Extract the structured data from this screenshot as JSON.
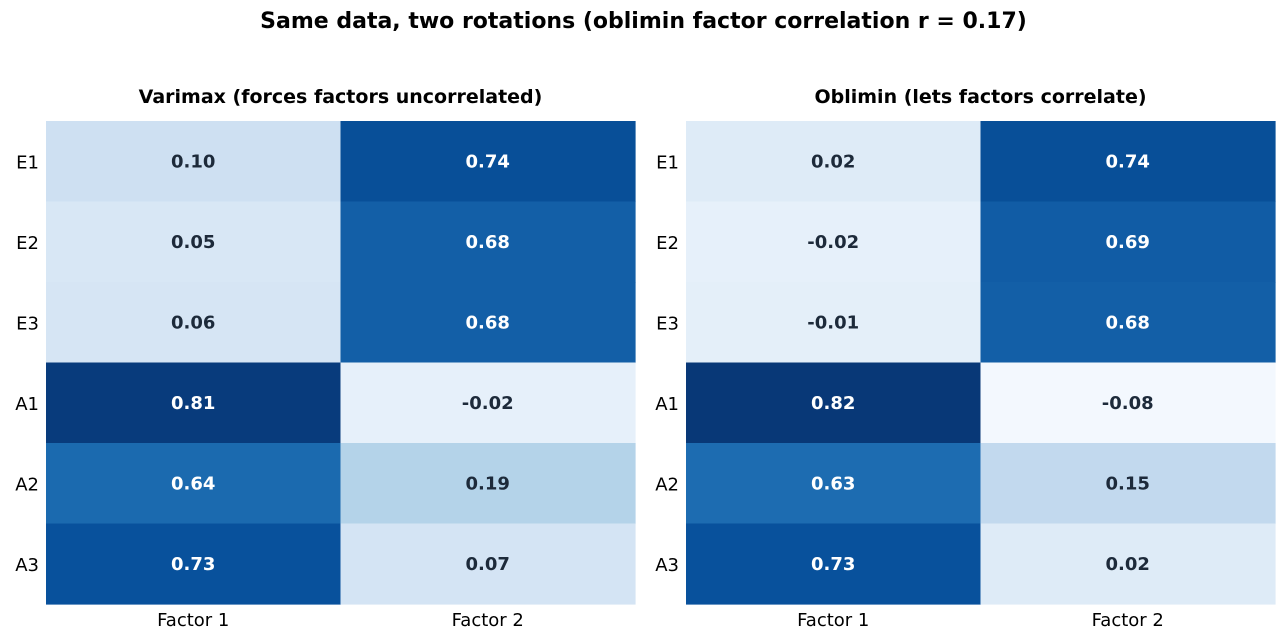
{
  "suptitle": "Same data, two rotations  (oblimin factor correlation r = 0.17)",
  "chart_data": [
    {
      "type": "heatmap",
      "title": "Varimax (forces factors uncorrelated)",
      "rows": [
        "E1",
        "E2",
        "E3",
        "A1",
        "A2",
        "A3"
      ],
      "columns": [
        "Factor 1",
        "Factor 2"
      ],
      "values": [
        [
          0.1,
          0.74
        ],
        [
          0.05,
          0.68
        ],
        [
          0.06,
          0.68
        ],
        [
          0.81,
          -0.02
        ],
        [
          0.64,
          0.19
        ],
        [
          0.73,
          0.07
        ]
      ],
      "labels": [
        [
          "0.10",
          "0.74"
        ],
        [
          "0.05",
          "0.68"
        ],
        [
          "0.06",
          "0.68"
        ],
        [
          "0.81",
          "-0.02"
        ],
        [
          "0.64",
          "0.19"
        ],
        [
          "0.73",
          "0.07"
        ]
      ],
      "colormap": "Blues"
    },
    {
      "type": "heatmap",
      "title": "Oblimin (lets factors correlate)",
      "rows": [
        "E1",
        "E2",
        "E3",
        "A1",
        "A2",
        "A3"
      ],
      "columns": [
        "Factor 1",
        "Factor 2"
      ],
      "values": [
        [
          0.02,
          0.74
        ],
        [
          -0.02,
          0.69
        ],
        [
          -0.01,
          0.68
        ],
        [
          0.82,
          -0.08
        ],
        [
          0.63,
          0.15
        ],
        [
          0.73,
          0.02
        ]
      ],
      "labels": [
        [
          "0.02",
          "0.74"
        ],
        [
          "-0.02",
          "0.69"
        ],
        [
          "-0.01",
          "0.68"
        ],
        [
          "0.82",
          "-0.08"
        ],
        [
          "0.63",
          "0.15"
        ],
        [
          "0.73",
          "0.02"
        ]
      ],
      "colormap": "Blues"
    }
  ]
}
